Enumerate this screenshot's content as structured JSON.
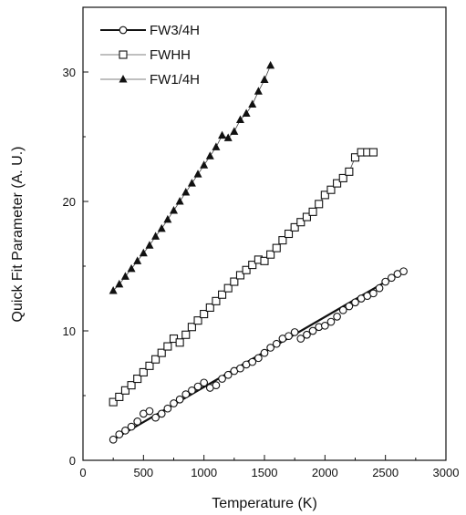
{
  "chart_data": {
    "type": "scatter",
    "xlabel": "Temperature (K)",
    "ylabel": "Quick Fit Parameter (A. U.)",
    "xlim": [
      0,
      3000
    ],
    "ylim": [
      0,
      35
    ],
    "x_ticks": [
      "0",
      "500",
      "1000",
      "1500",
      "2000",
      "2500",
      "3000"
    ],
    "y_ticks": [
      "0",
      "10",
      "20",
      "30"
    ],
    "grid": false,
    "legend_position": "top-left",
    "series": [
      {
        "name": "FW3/4H",
        "marker": "open-circle",
        "line": "solid-thick",
        "fit": [
          [
            250,
            1.6
          ],
          [
            2650,
            14.6
          ]
        ],
        "x": [
          250,
          300,
          350,
          400,
          450,
          500,
          550,
          600,
          650,
          700,
          750,
          800,
          850,
          900,
          950,
          1000,
          1050,
          1100,
          1150,
          1200,
          1250,
          1300,
          1350,
          1400,
          1450,
          1500,
          1550,
          1600,
          1650,
          1700,
          1750,
          1800,
          1850,
          1900,
          1950,
          2000,
          2050,
          2100,
          2150,
          2200,
          2250,
          2300,
          2350,
          2400,
          2450,
          2500,
          2550,
          2600,
          2650
        ],
        "y": [
          1.6,
          2.0,
          2.3,
          2.6,
          3.0,
          3.6,
          3.8,
          3.3,
          3.6,
          4.0,
          4.4,
          4.7,
          5.1,
          5.4,
          5.7,
          6.0,
          5.6,
          5.8,
          6.3,
          6.6,
          6.9,
          7.1,
          7.4,
          7.6,
          7.9,
          8.3,
          8.7,
          9.0,
          9.4,
          9.6,
          9.9,
          9.4,
          9.7,
          10.0,
          10.3,
          10.4,
          10.7,
          11.1,
          11.6,
          11.9,
          12.2,
          12.5,
          12.7,
          12.9,
          13.3,
          13.8,
          14.1,
          14.4,
          14.6
        ]
      },
      {
        "name": "FWHH",
        "marker": "open-square",
        "line": "thin",
        "x": [
          250,
          300,
          350,
          400,
          450,
          500,
          550,
          600,
          650,
          700,
          750,
          800,
          850,
          900,
          950,
          1000,
          1050,
          1100,
          1150,
          1200,
          1250,
          1300,
          1350,
          1400,
          1450,
          1500,
          1550,
          1600,
          1650,
          1700,
          1750,
          1800,
          1850,
          1900,
          1950,
          2000,
          2050,
          2100,
          2150,
          2200,
          2250,
          2300,
          2350,
          2400
        ],
        "y": [
          4.5,
          4.9,
          5.4,
          5.8,
          6.3,
          6.8,
          7.3,
          7.8,
          8.3,
          8.8,
          9.4,
          9.1,
          9.7,
          10.3,
          10.8,
          11.3,
          11.8,
          12.3,
          12.8,
          13.3,
          13.8,
          14.3,
          14.7,
          15.1,
          15.5,
          15.4,
          15.9,
          16.4,
          17.0,
          17.5,
          18.0,
          18.4,
          18.8,
          19.2,
          19.8,
          20.5,
          20.9,
          21.4,
          21.8,
          22.3,
          23.4,
          23.8,
          23.8,
          23.8
        ]
      },
      {
        "name": "FW1/4H",
        "marker": "filled-triangle",
        "line": "thin",
        "x": [
          250,
          300,
          350,
          400,
          450,
          500,
          550,
          600,
          650,
          700,
          750,
          800,
          850,
          900,
          950,
          1000,
          1050,
          1100,
          1150,
          1200,
          1250,
          1300,
          1350,
          1400,
          1450,
          1500,
          1550
        ],
        "y": [
          13.1,
          13.6,
          14.2,
          14.8,
          15.4,
          16.0,
          16.6,
          17.3,
          17.9,
          18.6,
          19.3,
          20.0,
          20.7,
          21.4,
          22.1,
          22.8,
          23.5,
          24.2,
          25.1,
          24.9,
          25.4,
          26.3,
          26.8,
          27.5,
          28.5,
          29.4,
          30.5
        ]
      }
    ]
  }
}
